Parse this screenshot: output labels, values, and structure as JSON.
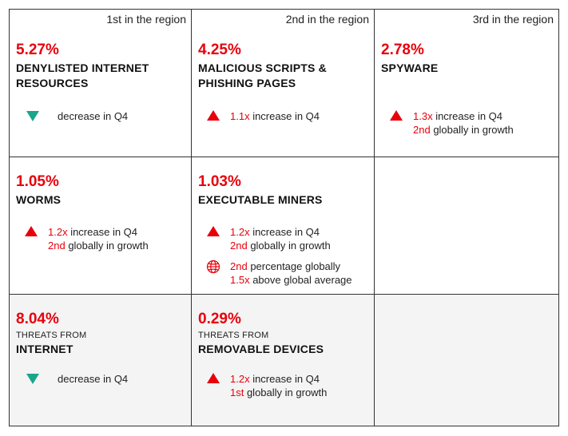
{
  "colors": {
    "accent": "#e8000b",
    "down": "#1aa68a",
    "shade": "#f4f4f4"
  },
  "cells": [
    {
      "rank": "1st in the region",
      "pct": "5.27%",
      "cat": [
        "DENYLISTED INTERNET",
        "RESOURCES"
      ],
      "stats": [
        {
          "icon": "triangle-down-icon",
          "lines": [
            {
              "pre": "",
              "hl": "",
              "post": "decrease in Q4"
            }
          ]
        }
      ]
    },
    {
      "rank": "2nd in the region",
      "pct": "4.25%",
      "cat": [
        "MALICIOUS SCRIPTS &",
        "PHISHING PAGES"
      ],
      "stats": [
        {
          "icon": "triangle-up-icon",
          "lines": [
            {
              "hl": "1.1x",
              "post": " increase in Q4"
            }
          ]
        }
      ]
    },
    {
      "rank": "3rd in the region",
      "pct": "2.78%",
      "cat": [
        "SPYWARE"
      ],
      "stats": [
        {
          "icon": "triangle-up-icon",
          "lines": [
            {
              "hl": "1.3x",
              "post": " increase in Q4"
            },
            {
              "hl": "2nd",
              "post": " globally in growth"
            }
          ]
        }
      ]
    },
    {
      "pct": "1.05%",
      "cat": [
        "WORMS"
      ],
      "stats": [
        {
          "icon": "triangle-up-icon",
          "lines": [
            {
              "hl": "1.2x",
              "post": " increase in Q4"
            },
            {
              "hl": "2nd",
              "post": " globally in growth"
            }
          ]
        }
      ]
    },
    {
      "pct": "1.03%",
      "cat": [
        "EXECUTABLE MINERS"
      ],
      "stats": [
        {
          "icon": "triangle-up-icon",
          "lines": [
            {
              "hl": "1.2x",
              "post": " increase in Q4"
            },
            {
              "hl": "2nd",
              "post": " globally in growth"
            }
          ]
        },
        {
          "icon": "globe-icon",
          "lines": [
            {
              "hl": "2nd",
              "post": " percentage globally"
            },
            {
              "hl": "1.5x",
              "post": " above global average"
            }
          ]
        }
      ]
    },
    {},
    {
      "pct": "8.04%",
      "small": "THREATS FROM",
      "cat": [
        "INTERNET"
      ],
      "stats": [
        {
          "icon": "triangle-down-icon",
          "lines": [
            {
              "hl": "",
              "post": "decrease in Q4"
            }
          ]
        }
      ]
    },
    {
      "pct": "0.29%",
      "small": "THREATS FROM",
      "cat": [
        "REMOVABLE DEVICES"
      ],
      "stats": [
        {
          "icon": "triangle-up-icon",
          "lines": [
            {
              "hl": "1.2x",
              "post": " increase in Q4"
            },
            {
              "hl": "1st",
              "post": " globally in growth"
            }
          ]
        }
      ]
    },
    {}
  ]
}
